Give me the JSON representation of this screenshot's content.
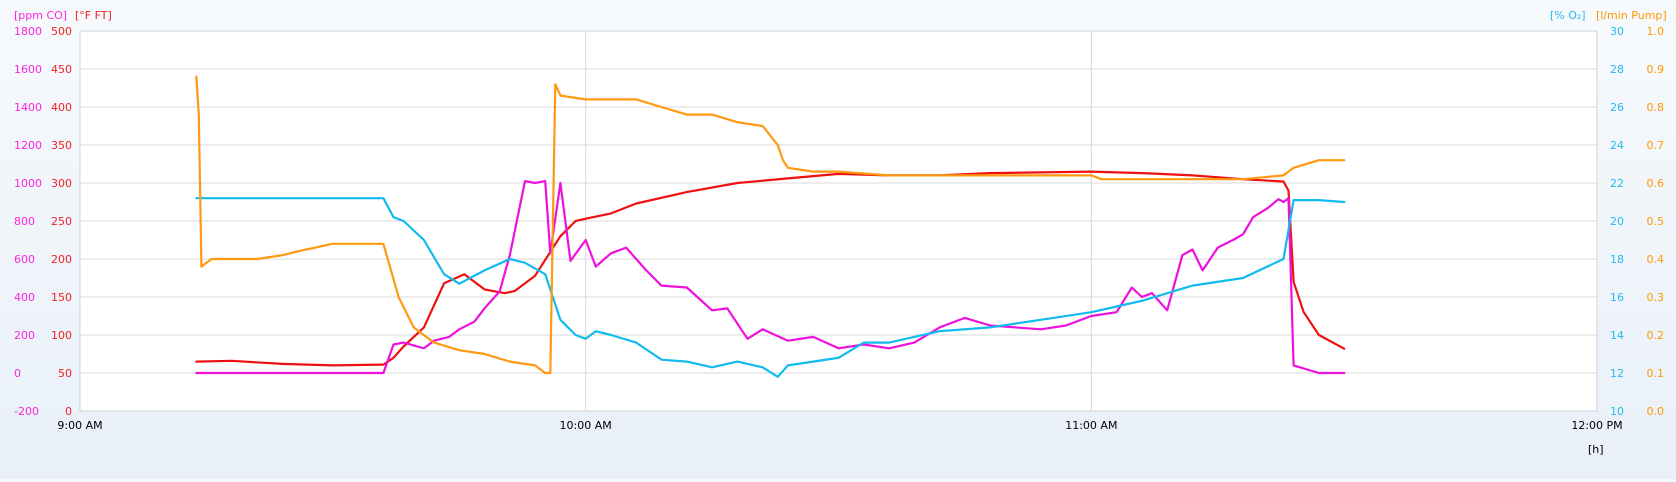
{
  "chart_data": {
    "type": "line",
    "x_axis": {
      "ticks": [
        "9:00 AM",
        "10:00 AM",
        "11:00 AM",
        "12:00 PM"
      ],
      "range_hours": [
        9.0,
        12.0
      ],
      "unit_label": "[h]"
    },
    "axes": {
      "co": {
        "label": "[ppm CO]",
        "color": "#ff22dd",
        "range": [
          -200,
          1800
        ],
        "ticks": [
          -200,
          0,
          200,
          400,
          600,
          800,
          1000,
          1200,
          1400,
          1600,
          1800
        ]
      },
      "ft": {
        "label": "[°F FT]",
        "color": "#ee2222",
        "range": [
          0,
          500
        ],
        "ticks": [
          0,
          50,
          100,
          150,
          200,
          250,
          300,
          350,
          400,
          450,
          500
        ]
      },
      "o2": {
        "label": "[% O₂]",
        "color": "#22bbee",
        "range": [
          10,
          30
        ],
        "ticks": [
          10,
          12,
          14,
          16,
          18,
          20,
          22,
          24,
          26,
          28,
          30
        ]
      },
      "pump": {
        "label": "[l/min Pump]",
        "color": "#ff9900",
        "range": [
          0.0,
          1.0
        ],
        "ticks": [
          "0.0",
          "0.1",
          "0.2",
          "0.3",
          "0.4",
          "0.5",
          "0.6",
          "0.7",
          "0.8",
          "0.9",
          "1.0"
        ]
      }
    },
    "grid": true,
    "series": [
      {
        "axis": "ft",
        "color": "#ee1111",
        "x": [
          9.23,
          9.3,
          9.4,
          9.5,
          9.6,
          9.62,
          9.64,
          9.68,
          9.72,
          9.76,
          9.8,
          9.84,
          9.86,
          9.9,
          9.95,
          9.98,
          10.0,
          10.05,
          10.1,
          10.2,
          10.3,
          10.4,
          10.5,
          10.6,
          10.7,
          10.8,
          10.9,
          11.0,
          11.1,
          11.2,
          11.3,
          11.38,
          11.39,
          11.4,
          11.42,
          11.45,
          11.5
        ],
        "values": [
          65,
          66,
          62,
          60,
          61,
          70,
          85,
          110,
          168,
          180,
          160,
          155,
          158,
          178,
          230,
          250,
          253,
          260,
          273,
          288,
          300,
          306,
          312,
          310,
          310,
          313,
          314,
          315,
          313,
          310,
          305,
          302,
          290,
          170,
          130,
          100,
          82
        ]
      },
      {
        "axis": "co",
        "color": "#ee11dd",
        "x": [
          9.23,
          9.4,
          9.6,
          9.62,
          9.64,
          9.68,
          9.7,
          9.73,
          9.75,
          9.78,
          9.8,
          9.83,
          9.85,
          9.88,
          9.9,
          9.92,
          9.93,
          9.95,
          9.97,
          10.0,
          10.02,
          10.05,
          10.08,
          10.1,
          10.12,
          10.15,
          10.2,
          10.25,
          10.28,
          10.32,
          10.35,
          10.4,
          10.45,
          10.5,
          10.55,
          10.6,
          10.65,
          10.7,
          10.75,
          10.8,
          10.85,
          10.9,
          10.95,
          11.0,
          11.05,
          11.08,
          11.1,
          11.12,
          11.15,
          11.18,
          11.2,
          11.22,
          11.25,
          11.28,
          11.3,
          11.32,
          11.35,
          11.37,
          11.38,
          11.39,
          11.4,
          11.45,
          11.5
        ],
        "values": [
          0,
          0,
          0,
          150,
          160,
          130,
          170,
          190,
          230,
          270,
          340,
          430,
          620,
          1010,
          1000,
          1010,
          630,
          1000,
          590,
          700,
          560,
          630,
          660,
          600,
          540,
          460,
          450,
          330,
          340,
          180,
          230,
          170,
          190,
          130,
          150,
          130,
          160,
          240,
          290,
          250,
          240,
          230,
          250,
          300,
          320,
          450,
          400,
          420,
          330,
          620,
          650,
          540,
          660,
          700,
          730,
          820,
          870,
          915,
          900,
          920,
          40,
          0,
          0
        ]
      },
      {
        "axis": "o2",
        "color": "#11bbee",
        "x": [
          9.23,
          9.4,
          9.6,
          9.62,
          9.64,
          9.68,
          9.72,
          9.75,
          9.8,
          9.85,
          9.88,
          9.92,
          9.95,
          9.98,
          10.0,
          10.02,
          10.05,
          10.1,
          10.15,
          10.2,
          10.25,
          10.3,
          10.35,
          10.38,
          10.4,
          10.45,
          10.5,
          10.55,
          10.6,
          10.7,
          10.8,
          10.9,
          11.0,
          11.05,
          11.1,
          11.2,
          11.3,
          11.38,
          11.4,
          11.45,
          11.5
        ],
        "values": [
          21.2,
          21.2,
          21.2,
          20.2,
          20.0,
          19.0,
          17.2,
          16.7,
          17.4,
          18.0,
          17.8,
          17.2,
          14.8,
          14.0,
          13.8,
          14.2,
          14.0,
          13.6,
          12.7,
          12.6,
          12.3,
          12.6,
          12.3,
          11.8,
          12.4,
          12.6,
          12.8,
          13.6,
          13.6,
          14.2,
          14.4,
          14.8,
          15.2,
          15.5,
          15.8,
          16.6,
          17.0,
          18.0,
          21.1,
          21.1,
          21.0
        ]
      },
      {
        "axis": "pump",
        "color": "#ff9911",
        "x": [
          9.23,
          9.235,
          9.24,
          9.26,
          9.35,
          9.4,
          9.43,
          9.5,
          9.58,
          9.6,
          9.63,
          9.66,
          9.7,
          9.75,
          9.8,
          9.85,
          9.9,
          9.92,
          9.93,
          9.94,
          9.95,
          10.0,
          10.05,
          10.1,
          10.15,
          10.2,
          10.25,
          10.3,
          10.35,
          10.38,
          10.39,
          10.4,
          10.45,
          10.5,
          10.6,
          10.7,
          10.8,
          10.9,
          11.0,
          11.02,
          11.1,
          11.2,
          11.3,
          11.38,
          11.4,
          11.45,
          11.5
        ],
        "values": [
          0.88,
          0.78,
          0.38,
          0.4,
          0.4,
          0.41,
          0.42,
          0.44,
          0.44,
          0.44,
          0.3,
          0.22,
          0.18,
          0.16,
          0.15,
          0.13,
          0.12,
          0.1,
          0.1,
          0.86,
          0.83,
          0.82,
          0.82,
          0.82,
          0.8,
          0.78,
          0.78,
          0.76,
          0.75,
          0.7,
          0.66,
          0.64,
          0.63,
          0.63,
          0.62,
          0.62,
          0.62,
          0.62,
          0.62,
          0.61,
          0.61,
          0.61,
          0.61,
          0.62,
          0.64,
          0.66,
          0.66
        ]
      }
    ]
  }
}
